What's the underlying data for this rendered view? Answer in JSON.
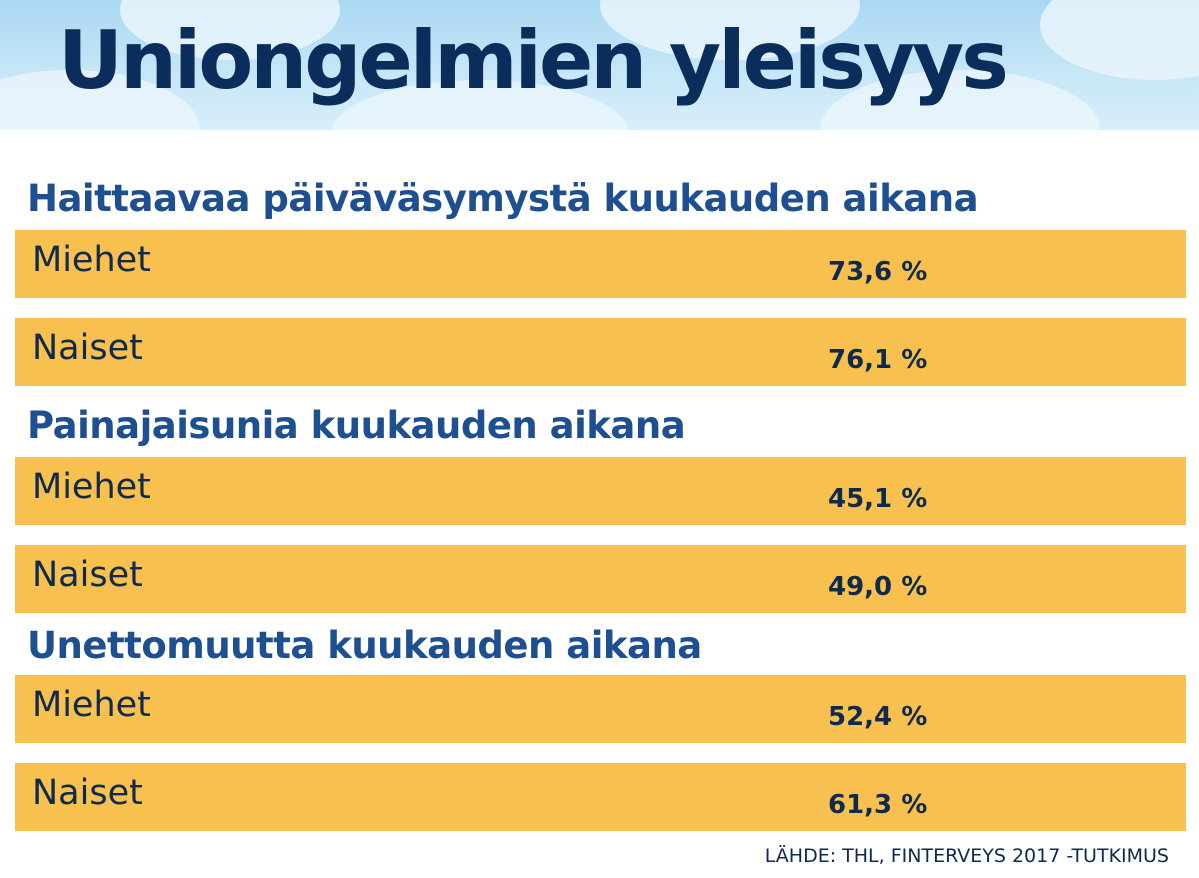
{
  "colors": {
    "title": "#0b2d5b",
    "section_title": "#1d4f91",
    "bar": "#f8c04e",
    "text": "#0f2a4a",
    "header_sky": "#c6e6f7"
  },
  "chart_data": {
    "type": "table",
    "title": "Uniongelmien yleisyys",
    "source": "LÄHDE: THL, FINTERVEYS 2017 -TUTKIMUS",
    "groups": [
      {
        "title": "Haittaavaa päiväväsymystä kuukauden aikana",
        "rows": [
          {
            "label": "Miehet",
            "value": 73.6,
            "display": "73,6 %"
          },
          {
            "label": "Naiset",
            "value": 76.1,
            "display": "76,1 %"
          }
        ]
      },
      {
        "title": "Painajaisunia kuukauden aikana",
        "rows": [
          {
            "label": "Miehet",
            "value": 45.1,
            "display": "45,1 %"
          },
          {
            "label": "Naiset",
            "value": 49.0,
            "display": "49,0 %"
          }
        ]
      },
      {
        "title": "Unettomuutta kuukauden aikana",
        "rows": [
          {
            "label": "Miehet",
            "value": 52.4,
            "display": "52,4 %"
          },
          {
            "label": "Naiset",
            "value": 61.3,
            "display": "61,3 %"
          }
        ]
      }
    ]
  }
}
